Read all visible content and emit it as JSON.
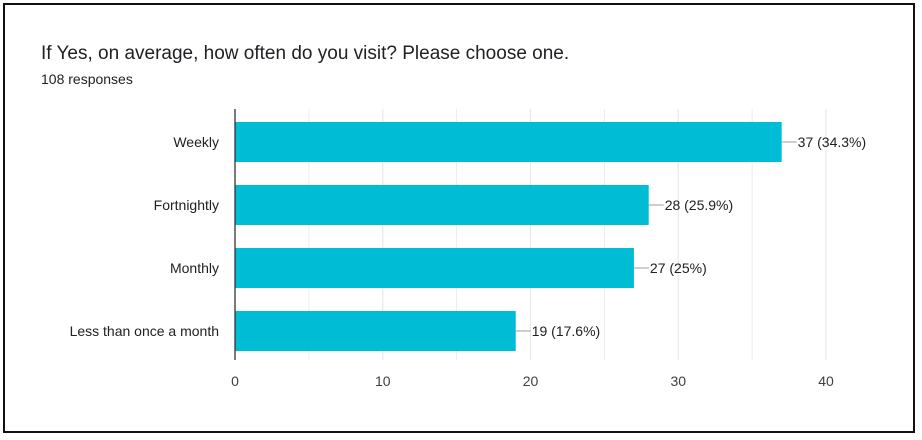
{
  "header": {
    "title": "If Yes, on average, how often do you visit?  Please choose one.",
    "responses": "108 responses"
  },
  "colors": {
    "bar": "#00BCD4",
    "grid": "#e8e8e8",
    "axis": "#333333",
    "leader": "#9e9e9e"
  },
  "chart_data": {
    "type": "bar",
    "orientation": "horizontal",
    "title": "If Yes, on average, how often do you visit?  Please choose one.",
    "subtitle": "108 responses",
    "categories": [
      "Weekly",
      "Fortnightly",
      "Monthly",
      "Less than once a month"
    ],
    "values": [
      37,
      28,
      27,
      19
    ],
    "data_labels": [
      "37 (34.3%)",
      "28 (25.9%)",
      "27 (25%)",
      "19 (17.6%)"
    ],
    "xlim": [
      0,
      40
    ],
    "xticks": [
      0,
      10,
      20,
      30,
      40
    ],
    "grid": true,
    "legend": "none"
  }
}
